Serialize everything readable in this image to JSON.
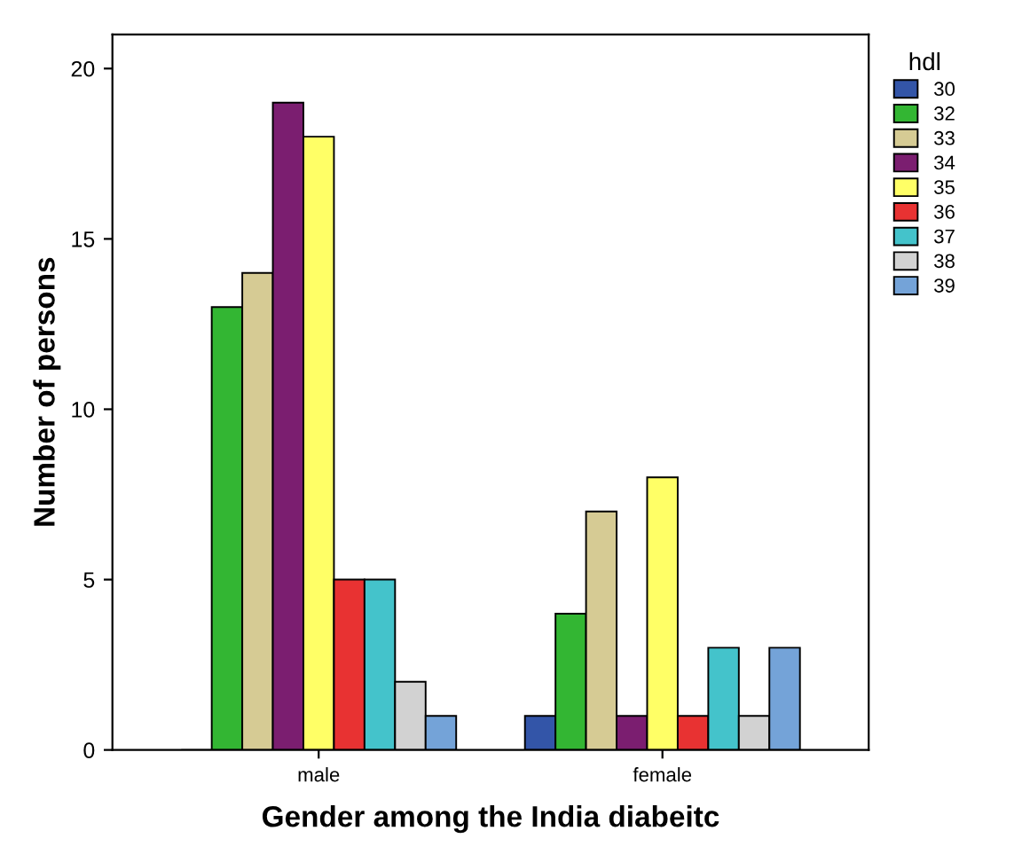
{
  "chart_data": {
    "type": "bar",
    "xlabel": "Gender among the India diabeitc",
    "ylabel": "Number of persons",
    "legend_title": "hdl",
    "categories": [
      "male",
      "female"
    ],
    "series": [
      {
        "name": "30",
        "color": "#3355a8",
        "values": [
          0,
          1
        ]
      },
      {
        "name": "32",
        "color": "#33b633",
        "values": [
          13,
          4
        ]
      },
      {
        "name": "33",
        "color": "#d6cb94",
        "values": [
          14,
          7
        ]
      },
      {
        "name": "34",
        "color": "#7b1e70",
        "values": [
          19,
          1
        ]
      },
      {
        "name": "35",
        "color": "#ffff66",
        "values": [
          18,
          8
        ]
      },
      {
        "name": "36",
        "color": "#e83232",
        "values": [
          5,
          1
        ]
      },
      {
        "name": "37",
        "color": "#44c3cb",
        "values": [
          5,
          3
        ]
      },
      {
        "name": "38",
        "color": "#d2d2d2",
        "values": [
          2,
          1
        ]
      },
      {
        "name": "39",
        "color": "#74a3d8",
        "values": [
          1,
          3
        ]
      }
    ],
    "ylim": [
      0,
      21
    ],
    "yticks": [
      0,
      5,
      10,
      15,
      20
    ],
    "grid": false,
    "legend": "right"
  }
}
